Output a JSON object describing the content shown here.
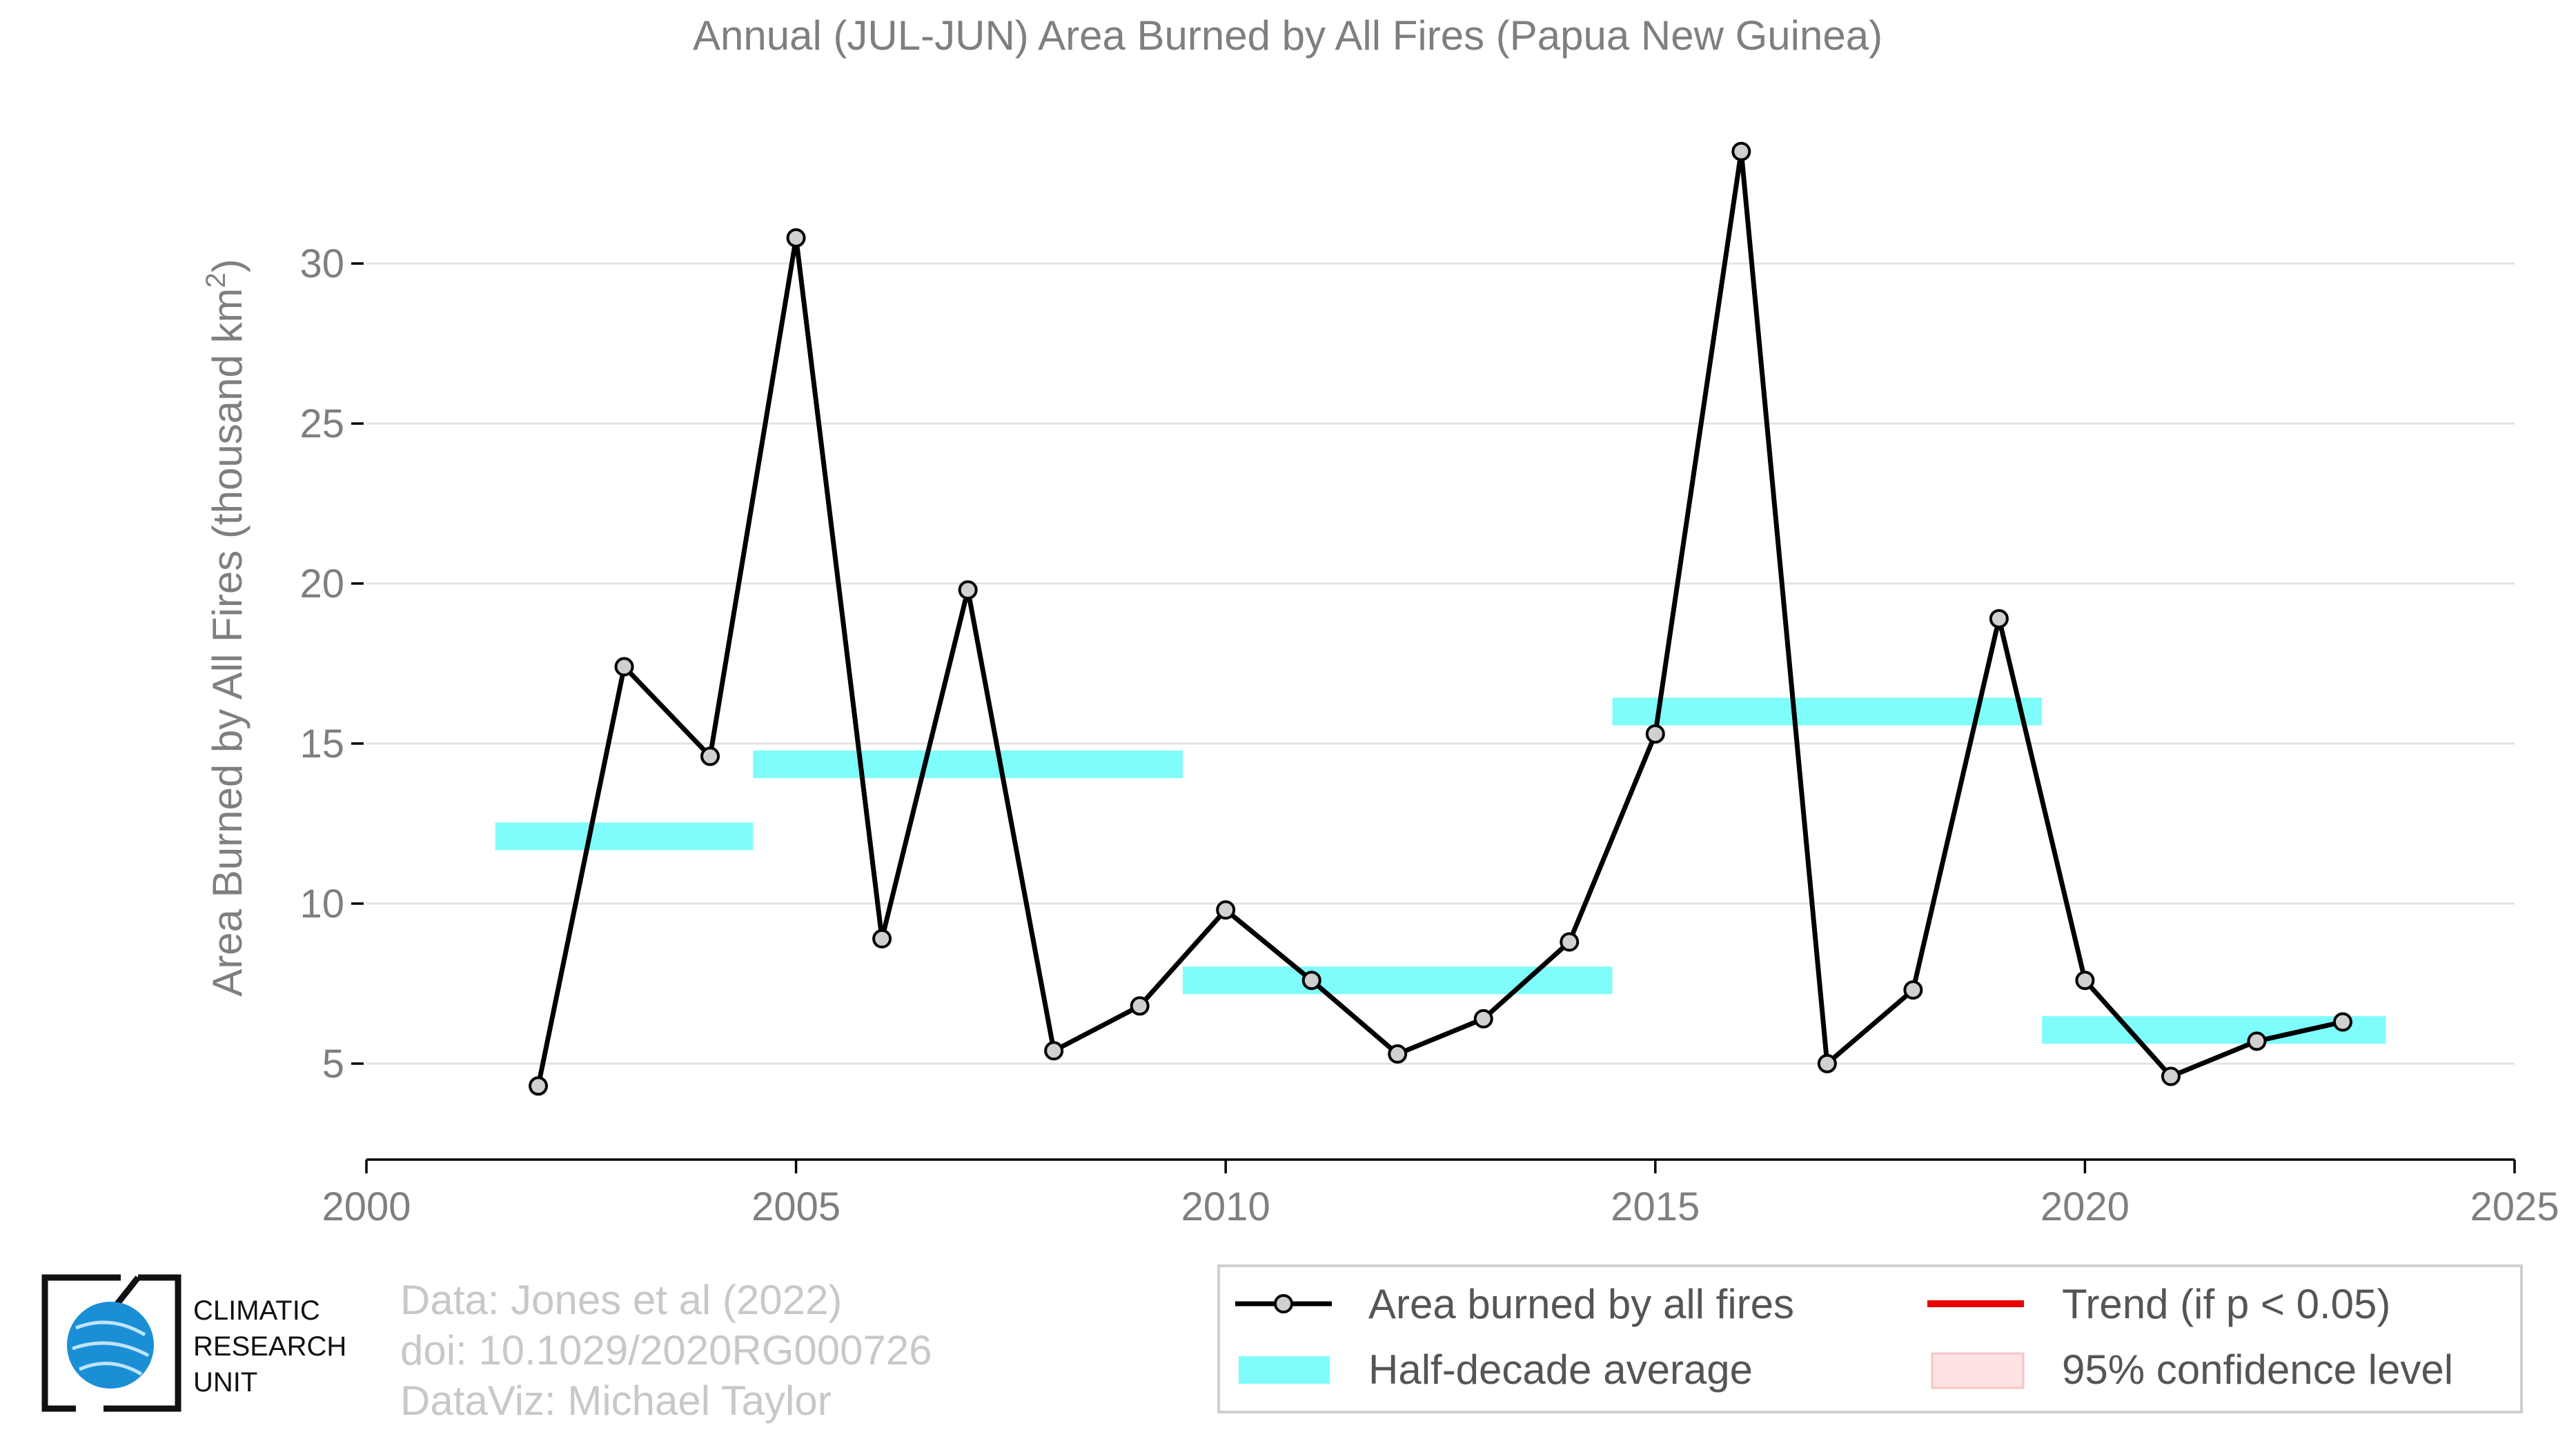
{
  "chart_data": {
    "type": "line",
    "title": "Annual (JUL-JUN) Area Burned by All Fires (Papua New Guinea)",
    "ylabel": "Area Burned by All Fires (thousand km",
    "ylabel_sup": "2",
    "ylabel_close": ")",
    "xlim": [
      2000,
      2025
    ],
    "ylim": [
      2,
      35
    ],
    "x_ticks": [
      2000,
      2005,
      2010,
      2015,
      2020,
      2025
    ],
    "y_ticks": [
      5,
      10,
      15,
      20,
      25,
      30
    ],
    "grid": true,
    "series": [
      {
        "name": "Area burned by all fires",
        "color": "#000000",
        "marker_color": "#d0d0d0",
        "x": [
          2002,
          2003,
          2004,
          2005,
          2006,
          2007,
          2008,
          2009,
          2010,
          2011,
          2012,
          2013,
          2014,
          2015,
          2016,
          2017,
          2018,
          2019,
          2020,
          2021,
          2022,
          2023
        ],
        "y": [
          4.3,
          17.4,
          14.6,
          30.8,
          8.9,
          19.8,
          5.4,
          6.8,
          9.8,
          7.6,
          5.3,
          6.4,
          8.8,
          15.3,
          33.5,
          5.0,
          7.3,
          18.9,
          7.6,
          4.6,
          5.7,
          6.3
        ]
      }
    ],
    "half_decade_averages": [
      {
        "x_start": 2001.5,
        "x_end": 2004.5,
        "value": 12.1
      },
      {
        "x_start": 2004.5,
        "x_end": 2009.5,
        "value": 14.35
      },
      {
        "x_start": 2009.5,
        "x_end": 2014.5,
        "value": 7.6
      },
      {
        "x_start": 2014.5,
        "x_end": 2019.5,
        "value": 16.0
      },
      {
        "x_start": 2019.5,
        "x_end": 2023.5,
        "value": 6.05
      }
    ],
    "half_decade_color": "#7ffcfc",
    "trend_color": "#ee0000",
    "confidence_color": "#fde2e2",
    "legend": {
      "position": "bottom-right",
      "items": [
        "Area burned by all fires",
        "Trend (if p < 0.05)",
        "Half-decade average",
        "95% confidence level"
      ]
    }
  },
  "credits": {
    "line1": "Data: Jones et al (2022)",
    "line2": "doi: 10.1029/2020RG000726",
    "line3": "DataViz: Michael Taylor"
  },
  "logo": {
    "line1": "CLIMATIC",
    "line2": "RESEARCH",
    "line3": "UNIT"
  }
}
